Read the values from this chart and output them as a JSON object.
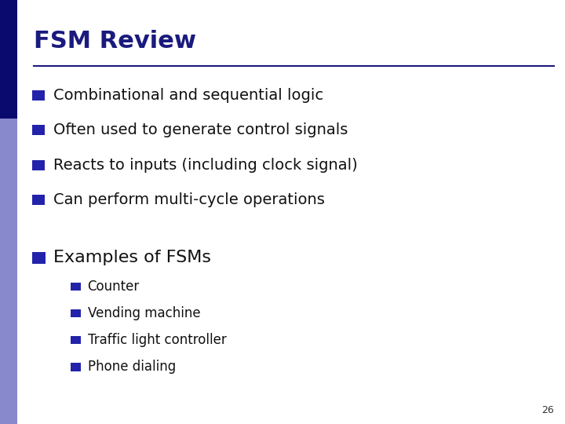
{
  "title": "FSM Review",
  "title_color": "#1a1a7e",
  "title_fontsize": 22,
  "line_color": "#1a1a7e",
  "background_color": "#ffffff",
  "bullet_color": "#2222aa",
  "main_bullets": [
    "Combinational and sequential logic",
    "Often used to generate control signals",
    "Reacts to inputs (including clock signal)",
    "Can perform multi-cycle operations"
  ],
  "main_bullet_fontsize": 14,
  "main_bullet_color": "#111111",
  "section_bullet": "Examples of FSMs",
  "section_bullet_fontsize": 16,
  "sub_bullets": [
    "Counter",
    "Vending machine",
    "Traffic light controller",
    "Phone dialing"
  ],
  "sub_bullet_fontsize": 12,
  "sub_bullet_color": "#111111",
  "page_number": "26",
  "page_number_fontsize": 9,
  "page_number_color": "#333333",
  "accent_bar_dark": "#0a0a6e",
  "accent_bar_light": "#8888cc"
}
